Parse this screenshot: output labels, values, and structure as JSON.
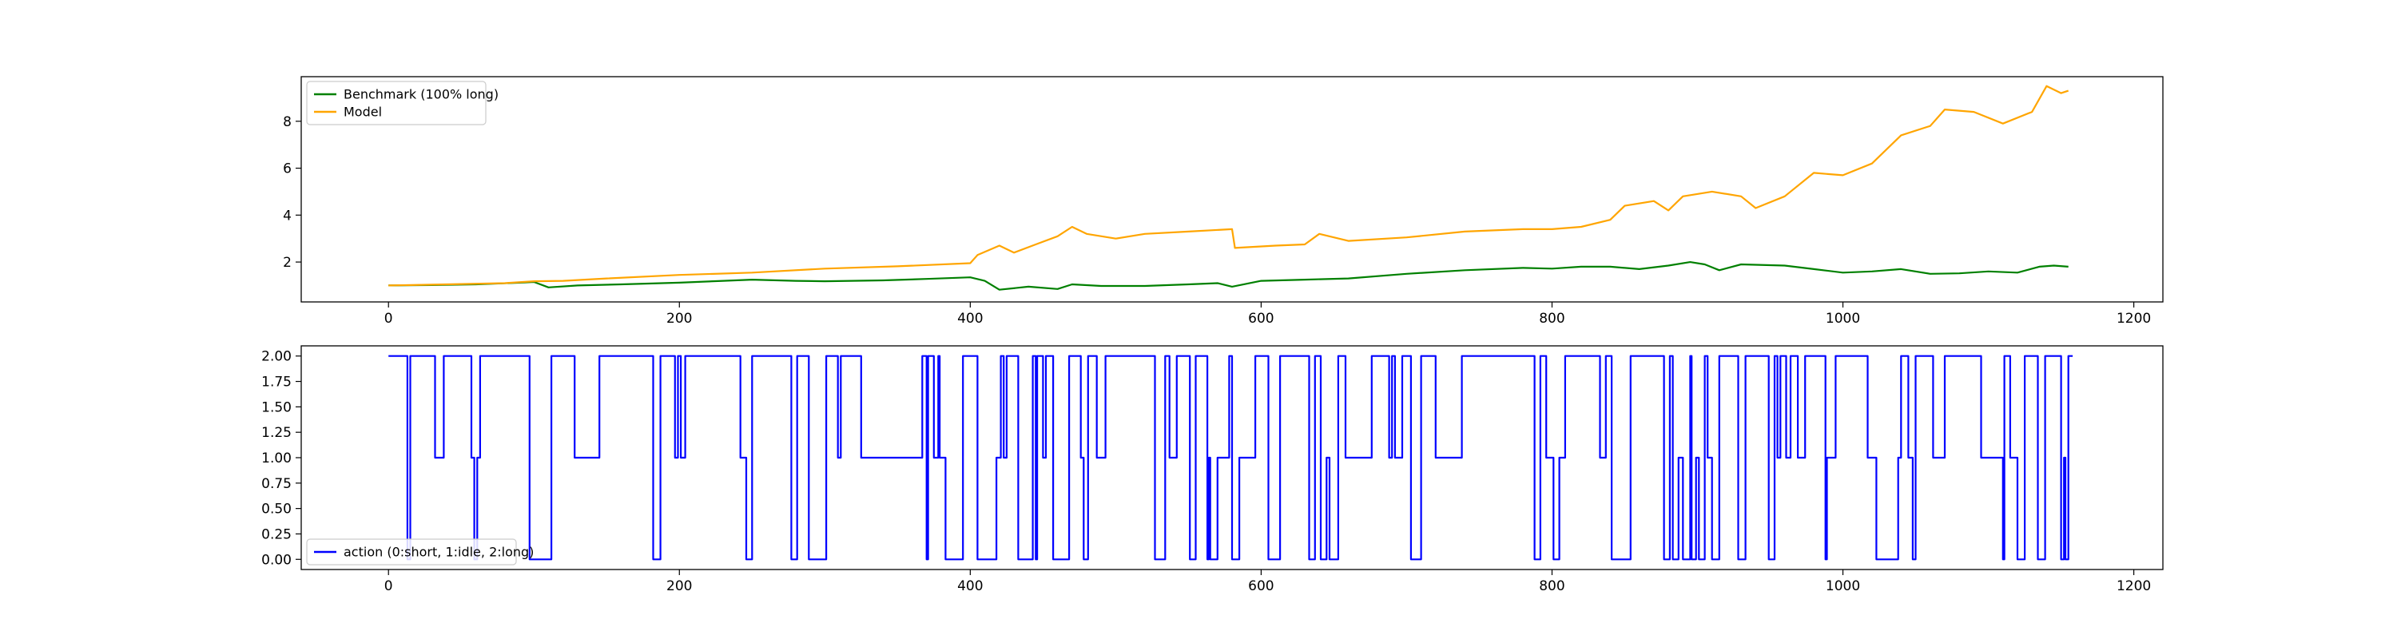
{
  "chart_data": [
    {
      "type": "line",
      "title": "",
      "xlabel": "",
      "ylabel": "",
      "xlim": [
        -60,
        1220
      ],
      "ylim": [
        0.3,
        9.9
      ],
      "xticks": [
        0,
        200,
        400,
        600,
        800,
        1000,
        1200
      ],
      "yticks": [
        2,
        4,
        6,
        8
      ],
      "grid": false,
      "legend_position": "upper-left",
      "series": [
        {
          "name": "Benchmark (100% long)",
          "color": "#008000",
          "points": [
            [
              0,
              1.0
            ],
            [
              30,
              1.02
            ],
            [
              60,
              1.05
            ],
            [
              90,
              1.12
            ],
            [
              100,
              1.15
            ],
            [
              110,
              0.92
            ],
            [
              130,
              1.0
            ],
            [
              160,
              1.05
            ],
            [
              200,
              1.12
            ],
            [
              230,
              1.2
            ],
            [
              250,
              1.25
            ],
            [
              280,
              1.2
            ],
            [
              300,
              1.18
            ],
            [
              340,
              1.22
            ],
            [
              370,
              1.28
            ],
            [
              400,
              1.35
            ],
            [
              410,
              1.2
            ],
            [
              420,
              0.82
            ],
            [
              440,
              0.95
            ],
            [
              460,
              0.85
            ],
            [
              470,
              1.05
            ],
            [
              490,
              0.98
            ],
            [
              520,
              0.98
            ],
            [
              550,
              1.05
            ],
            [
              570,
              1.1
            ],
            [
              580,
              0.95
            ],
            [
              600,
              1.2
            ],
            [
              630,
              1.25
            ],
            [
              660,
              1.3
            ],
            [
              700,
              1.5
            ],
            [
              740,
              1.65
            ],
            [
              780,
              1.75
            ],
            [
              800,
              1.72
            ],
            [
              820,
              1.8
            ],
            [
              840,
              1.8
            ],
            [
              860,
              1.7
            ],
            [
              880,
              1.85
            ],
            [
              895,
              2.0
            ],
            [
              905,
              1.9
            ],
            [
              915,
              1.65
            ],
            [
              930,
              1.9
            ],
            [
              960,
              1.85
            ],
            [
              980,
              1.7
            ],
            [
              1000,
              1.55
            ],
            [
              1020,
              1.6
            ],
            [
              1040,
              1.7
            ],
            [
              1060,
              1.5
            ],
            [
              1080,
              1.52
            ],
            [
              1100,
              1.6
            ],
            [
              1120,
              1.55
            ],
            [
              1135,
              1.8
            ],
            [
              1145,
              1.85
            ],
            [
              1155,
              1.8
            ]
          ]
        },
        {
          "name": "Model",
          "color": "#ffa500",
          "points": [
            [
              0,
              1.0
            ],
            [
              40,
              1.05
            ],
            [
              80,
              1.1
            ],
            [
              100,
              1.18
            ],
            [
              120,
              1.2
            ],
            [
              150,
              1.3
            ],
            [
              200,
              1.45
            ],
            [
              250,
              1.55
            ],
            [
              300,
              1.72
            ],
            [
              350,
              1.82
            ],
            [
              400,
              1.95
            ],
            [
              405,
              2.3
            ],
            [
              420,
              2.7
            ],
            [
              430,
              2.4
            ],
            [
              445,
              2.75
            ],
            [
              460,
              3.1
            ],
            [
              470,
              3.5
            ],
            [
              480,
              3.2
            ],
            [
              500,
              3.0
            ],
            [
              520,
              3.2
            ],
            [
              550,
              3.3
            ],
            [
              580,
              3.4
            ],
            [
              582,
              2.6
            ],
            [
              610,
              2.7
            ],
            [
              630,
              2.75
            ],
            [
              640,
              3.2
            ],
            [
              660,
              2.9
            ],
            [
              700,
              3.05
            ],
            [
              740,
              3.3
            ],
            [
              780,
              3.4
            ],
            [
              800,
              3.4
            ],
            [
              820,
              3.5
            ],
            [
              840,
              3.8
            ],
            [
              850,
              4.4
            ],
            [
              870,
              4.6
            ],
            [
              880,
              4.2
            ],
            [
              890,
              4.8
            ],
            [
              910,
              5.0
            ],
            [
              930,
              4.8
            ],
            [
              940,
              4.3
            ],
            [
              960,
              4.8
            ],
            [
              980,
              5.8
            ],
            [
              1000,
              5.7
            ],
            [
              1020,
              6.2
            ],
            [
              1040,
              7.4
            ],
            [
              1060,
              7.8
            ],
            [
              1070,
              8.5
            ],
            [
              1090,
              8.4
            ],
            [
              1110,
              7.9
            ],
            [
              1130,
              8.4
            ],
            [
              1140,
              9.5
            ],
            [
              1150,
              9.2
            ],
            [
              1155,
              9.3
            ]
          ]
        }
      ]
    },
    {
      "type": "line",
      "title": "",
      "xlabel": "",
      "ylabel": "",
      "xlim": [
        -60,
        1220
      ],
      "ylim": [
        -0.1,
        2.1
      ],
      "xticks": [
        0,
        200,
        400,
        600,
        800,
        1000,
        1200
      ],
      "yticks": [
        0.0,
        0.25,
        0.5,
        0.75,
        1.0,
        1.25,
        1.5,
        1.75,
        2.0
      ],
      "ytick_labels": [
        "0.00",
        "0.25",
        "0.50",
        "0.75",
        "1.00",
        "1.25",
        "1.50",
        "1.75",
        "2.00"
      ],
      "grid": false,
      "legend_position": "lower-left",
      "series": [
        {
          "name": "action (0:short, 1:idle, 2:long)",
          "color": "#0000ff",
          "step": [
            [
              0,
              2
            ],
            [
              13,
              0
            ],
            [
              15,
              2
            ],
            [
              32,
              1
            ],
            [
              38,
              2
            ],
            [
              57,
              1
            ],
            [
              59,
              0
            ],
            [
              61,
              1
            ],
            [
              63,
              2
            ],
            [
              97,
              0
            ],
            [
              112,
              2
            ],
            [
              128,
              1
            ],
            [
              145,
              2
            ],
            [
              182,
              0
            ],
            [
              187,
              2
            ],
            [
              197,
              1
            ],
            [
              199,
              2
            ],
            [
              201,
              1
            ],
            [
              204,
              2
            ],
            [
              242,
              1
            ],
            [
              246,
              0
            ],
            [
              250,
              2
            ],
            [
              277,
              0
            ],
            [
              281,
              2
            ],
            [
              289,
              0
            ],
            [
              301,
              2
            ],
            [
              309,
              1
            ],
            [
              311,
              2
            ],
            [
              325,
              1
            ],
            [
              367,
              2
            ],
            [
              370,
              0
            ],
            [
              371,
              2
            ],
            [
              375,
              1
            ],
            [
              378,
              2
            ],
            [
              379,
              1
            ],
            [
              383,
              0
            ],
            [
              395,
              2
            ],
            [
              405,
              0
            ],
            [
              418,
              1
            ],
            [
              421,
              2
            ],
            [
              423,
              1
            ],
            [
              425,
              2
            ],
            [
              433,
              0
            ],
            [
              443,
              2
            ],
            [
              445,
              0
            ],
            [
              446,
              2
            ],
            [
              450,
              1
            ],
            [
              452,
              2
            ],
            [
              457,
              0
            ],
            [
              468,
              2
            ],
            [
              476,
              1
            ],
            [
              478,
              0
            ],
            [
              481,
              2
            ],
            [
              487,
              1
            ],
            [
              493,
              2
            ],
            [
              527,
              0
            ],
            [
              534,
              2
            ],
            [
              537,
              1
            ],
            [
              542,
              2
            ],
            [
              551,
              0
            ],
            [
              555,
              2
            ],
            [
              563,
              0
            ],
            [
              564,
              1
            ],
            [
              565,
              0
            ],
            [
              570,
              1
            ],
            [
              578,
              2
            ],
            [
              580,
              0
            ],
            [
              585,
              1
            ],
            [
              596,
              2
            ],
            [
              605,
              0
            ],
            [
              613,
              2
            ],
            [
              633,
              0
            ],
            [
              637,
              2
            ],
            [
              641,
              0
            ],
            [
              645,
              1
            ],
            [
              647,
              0
            ],
            [
              653,
              2
            ],
            [
              658,
              1
            ],
            [
              676,
              2
            ],
            [
              688,
              1
            ],
            [
              690,
              2
            ],
            [
              692,
              1
            ],
            [
              697,
              2
            ],
            [
              703,
              0
            ],
            [
              710,
              2
            ],
            [
              720,
              1
            ],
            [
              738,
              2
            ],
            [
              788,
              0
            ],
            [
              792,
              2
            ],
            [
              796,
              1
            ],
            [
              801,
              0
            ],
            [
              805,
              1
            ],
            [
              809,
              2
            ],
            [
              833,
              1
            ],
            [
              837,
              2
            ],
            [
              841,
              0
            ],
            [
              854,
              2
            ],
            [
              877,
              0
            ],
            [
              881,
              2
            ],
            [
              883,
              0
            ],
            [
              887,
              1
            ],
            [
              890,
              0
            ],
            [
              895,
              2
            ],
            [
              896,
              0
            ],
            [
              899,
              1
            ],
            [
              901,
              0
            ],
            [
              905,
              2
            ],
            [
              907,
              1
            ],
            [
              910,
              0
            ],
            [
              915,
              2
            ],
            [
              928,
              0
            ],
            [
              933,
              2
            ],
            [
              949,
              0
            ],
            [
              953,
              2
            ],
            [
              955,
              1
            ],
            [
              957,
              2
            ],
            [
              961,
              1
            ],
            [
              964,
              2
            ],
            [
              969,
              1
            ],
            [
              974,
              2
            ],
            [
              988,
              0
            ],
            [
              989,
              1
            ],
            [
              995,
              2
            ],
            [
              1017,
              1
            ],
            [
              1023,
              0
            ],
            [
              1038,
              1
            ],
            [
              1040,
              2
            ],
            [
              1045,
              1
            ],
            [
              1048,
              0
            ],
            [
              1050,
              2
            ],
            [
              1062,
              1
            ],
            [
              1070,
              2
            ],
            [
              1095,
              1
            ],
            [
              1110,
              0
            ],
            [
              1111,
              2
            ],
            [
              1115,
              1
            ],
            [
              1120,
              0
            ],
            [
              1125,
              2
            ],
            [
              1134,
              0
            ],
            [
              1139,
              2
            ],
            [
              1150,
              0
            ],
            [
              1152,
              1
            ],
            [
              1153,
              0
            ],
            [
              1155,
              2
            ],
            [
              1158,
              2
            ]
          ]
        }
      ]
    }
  ]
}
